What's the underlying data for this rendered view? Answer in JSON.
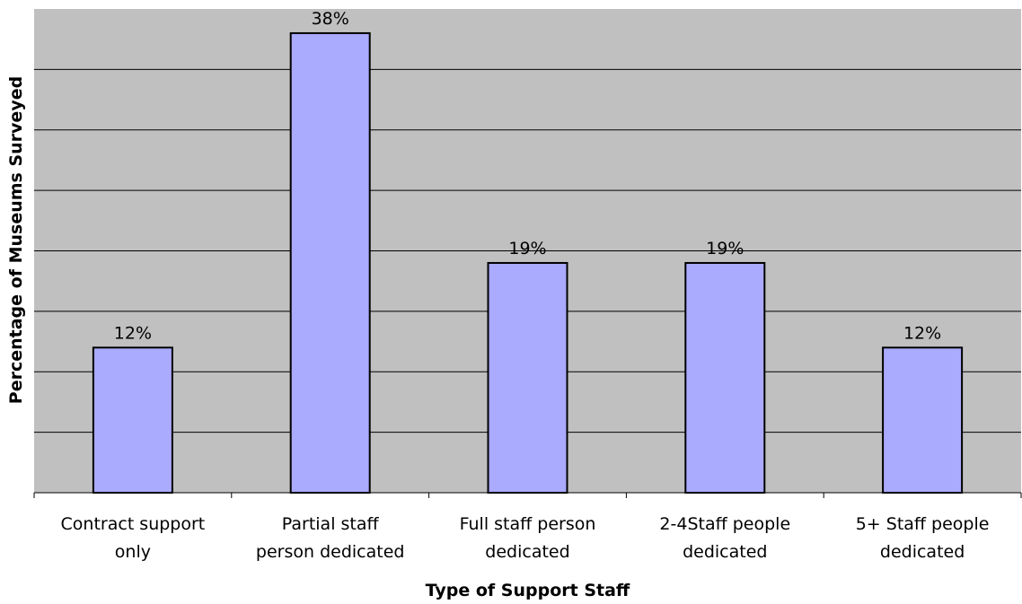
{
  "chart_data": {
    "type": "bar",
    "title": "",
    "xlabel": "Type of Support Staff",
    "ylabel": "Percentage of Museums Surveyed",
    "categories": [
      [
        "Contract support",
        "only"
      ],
      [
        "Partial staff",
        "person dedicated"
      ],
      [
        "Full staff person",
        "dedicated"
      ],
      [
        "2-4Staff people",
        "dedicated"
      ],
      [
        "5+ Staff people",
        "dedicated"
      ]
    ],
    "values": [
      12,
      38,
      19,
      19,
      12
    ],
    "data_labels": [
      "12%",
      "38%",
      "19%",
      "19%",
      "12%"
    ],
    "ylim": [
      0,
      40
    ],
    "grid": true,
    "legend": "none",
    "colors": {
      "bar_fill": "#aaaaff",
      "bar_stroke": "#000000",
      "plot_background": "#c0c0c0",
      "gridline": "#000000"
    }
  }
}
